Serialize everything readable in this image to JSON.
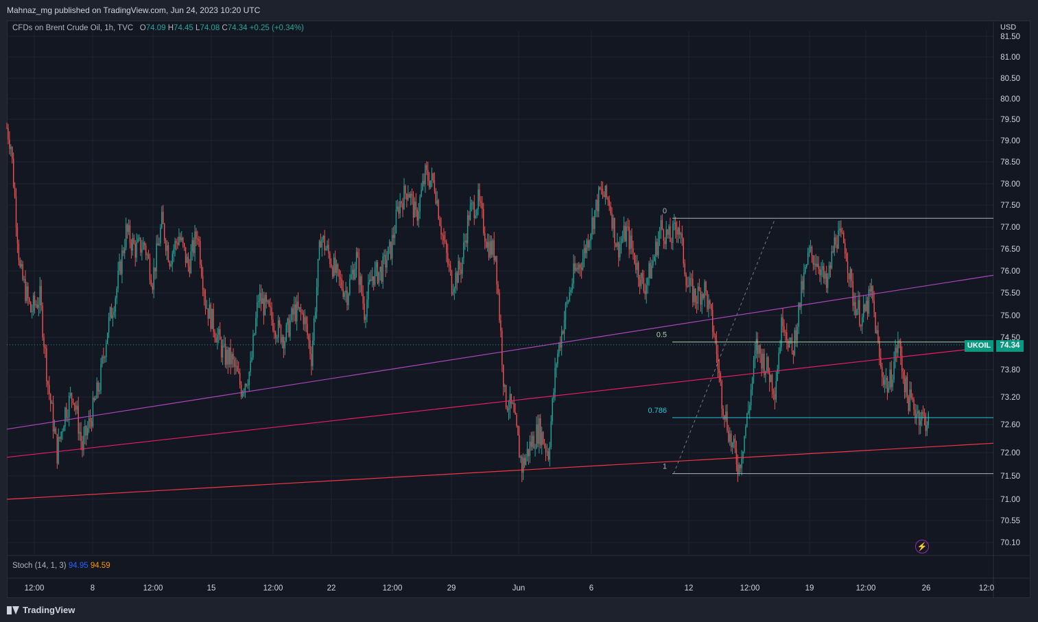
{
  "header": {
    "published": "Mahnaz_mg published on TradingView.com, Jun 24, 2023 10:20 UTC"
  },
  "legend": {
    "symbol": "CFDs on Brent Crude Oil, 1h, TVC",
    "o_label": "O",
    "o": "74.09",
    "h_label": "H",
    "h": "74.45",
    "l_label": "L",
    "l": "74.08",
    "c_label": "C",
    "c": "74.34",
    "change": "+0.25 (+0.34%)"
  },
  "stoch": {
    "label": "Stoch (14, 1, 3)",
    "k": "94.95",
    "d": "94.59"
  },
  "price_axis": {
    "currency": "USD",
    "ticks": [
      "81.50",
      "81.00",
      "80.50",
      "80.00",
      "79.50",
      "79.00",
      "78.50",
      "78.00",
      "77.50",
      "77.00",
      "76.50",
      "76.00",
      "75.50",
      "75.00",
      "74.50",
      "73.80",
      "73.20",
      "72.60",
      "72.00",
      "71.50",
      "71.00",
      "70.55",
      "70.10"
    ],
    "last_price": "74.34",
    "symbol_tag": "UKOIL"
  },
  "time_axis": {
    "ticks": [
      "12:00",
      "8",
      "12:00",
      "15",
      "12:00",
      "22",
      "12:00",
      "29",
      "Jun",
      "6",
      "12",
      "12:00",
      "19",
      "12:00",
      "26",
      "12:0"
    ]
  },
  "footer": {
    "brand": "TradingView"
  },
  "colors": {
    "up": "#26a69a",
    "down": "#ef5350",
    "purple_trend": "#ab47bc",
    "pink_trend": "#e91e63",
    "red_trend": "#f23645",
    "fib_green": "#a5d6a7",
    "fib_cyan": "#26c6da"
  },
  "chart_data": {
    "type": "candlestick",
    "title": "CFDs on Brent Crude Oil, 1h, TVC",
    "ylabel": "USD",
    "ylim": [
      70.0,
      81.6
    ],
    "y_scale": "nonlinear",
    "grid": true,
    "legend_position": "top-left",
    "x": [
      "12:00",
      "8",
      "12:00",
      "15",
      "12:00",
      "22",
      "12:00",
      "29",
      "Jun",
      "6",
      "12",
      "12:00",
      "19",
      "12:00",
      "26"
    ],
    "close_path": [
      [
        0,
        79.3
      ],
      [
        0.3,
        78.9
      ],
      [
        1.0,
        76.0
      ],
      [
        1.8,
        75.1
      ],
      [
        2.5,
        75.4
      ],
      [
        3.1,
        73.5
      ],
      [
        3.8,
        72.0
      ],
      [
        4.4,
        72.9
      ],
      [
        5.0,
        73.3
      ],
      [
        5.7,
        72.1
      ],
      [
        6.4,
        72.8
      ],
      [
        7.0,
        73.5
      ],
      [
        7.6,
        74.7
      ],
      [
        8.3,
        75.6
      ],
      [
        9.0,
        76.9
      ],
      [
        9.7,
        76.5
      ],
      [
        10.4,
        76.6
      ],
      [
        11.0,
        75.8
      ],
      [
        11.7,
        77.1
      ],
      [
        12.3,
        76.3
      ],
      [
        13.0,
        76.8
      ],
      [
        13.7,
        76.1
      ],
      [
        14.4,
        76.9
      ],
      [
        15.0,
        75.3
      ],
      [
        15.7,
        74.7
      ],
      [
        16.4,
        74.1
      ],
      [
        17.0,
        74.0
      ],
      [
        17.7,
        73.4
      ],
      [
        18.4,
        73.8
      ],
      [
        19.0,
        75.4
      ],
      [
        19.7,
        75.1
      ],
      [
        20.4,
        74.7
      ],
      [
        21.0,
        74.5
      ],
      [
        21.7,
        75.1
      ],
      [
        22.4,
        75.0
      ],
      [
        23.0,
        74.1
      ],
      [
        23.7,
        76.8
      ],
      [
        24.4,
        76.3
      ],
      [
        25.0,
        75.8
      ],
      [
        25.7,
        75.5
      ],
      [
        26.4,
        76.3
      ],
      [
        27.0,
        75.1
      ],
      [
        27.6,
        75.9
      ],
      [
        28.3,
        76.0
      ],
      [
        29.0,
        76.5
      ],
      [
        29.6,
        77.5
      ],
      [
        30.3,
        77.9
      ],
      [
        30.9,
        77.2
      ],
      [
        31.6,
        78.2
      ],
      [
        32.3,
        78.0
      ],
      [
        32.9,
        76.8
      ],
      [
        33.6,
        75.7
      ],
      [
        34.3,
        76.1
      ],
      [
        34.9,
        77.3
      ],
      [
        35.6,
        77.6
      ],
      [
        36.3,
        76.6
      ],
      [
        36.9,
        76.4
      ],
      [
        37.6,
        73.2
      ],
      [
        38.2,
        72.9
      ],
      [
        38.9,
        71.7
      ],
      [
        39.6,
        72.2
      ],
      [
        40.2,
        72.5
      ],
      [
        40.9,
        72.0
      ],
      [
        41.5,
        74.0
      ],
      [
        42.2,
        75.1
      ],
      [
        42.8,
        75.9
      ],
      [
        43.5,
        76.3
      ],
      [
        44.2,
        77.1
      ],
      [
        44.8,
        77.8
      ],
      [
        45.5,
        77.6
      ],
      [
        46.1,
        76.5
      ],
      [
        46.8,
        76.9
      ],
      [
        47.4,
        76.3
      ],
      [
        48.1,
        75.6
      ],
      [
        48.7,
        76.1
      ],
      [
        49.4,
        77.0
      ],
      [
        50.1,
        76.7
      ],
      [
        50.7,
        77.1
      ],
      [
        51.4,
        75.7
      ],
      [
        52.0,
        75.4
      ],
      [
        52.7,
        75.6
      ],
      [
        53.4,
        74.6
      ],
      [
        54.0,
        73.2
      ],
      [
        54.7,
        72.2
      ],
      [
        55.3,
        71.7
      ],
      [
        56.0,
        72.9
      ],
      [
        56.6,
        74.3
      ],
      [
        57.3,
        73.9
      ],
      [
        58.0,
        73.4
      ],
      [
        58.6,
        75.0
      ],
      [
        59.3,
        74.1
      ],
      [
        60.0,
        75.5
      ],
      [
        60.6,
        76.4
      ],
      [
        61.3,
        76.2
      ],
      [
        61.9,
        75.6
      ],
      [
        62.6,
        76.8
      ],
      [
        63.3,
        76.6
      ],
      [
        63.9,
        75.4
      ],
      [
        64.6,
        74.9
      ],
      [
        65.3,
        75.5
      ],
      [
        66.0,
        73.8
      ],
      [
        66.6,
        73.4
      ],
      [
        67.3,
        74.4
      ],
      [
        68.0,
        73.2
      ],
      [
        68.7,
        72.9
      ],
      [
        69.3,
        72.7
      ]
    ],
    "trendlines": [
      {
        "color": "purple",
        "from": [
          0,
          72.5
        ],
        "to": [
          70,
          75.9
        ]
      },
      {
        "color": "pink",
        "from": [
          0,
          71.9
        ],
        "to": [
          70,
          74.3
        ]
      },
      {
        "color": "red",
        "from": [
          0,
          71.0
        ],
        "to": [
          70,
          72.2
        ]
      }
    ],
    "fib_retracement": {
      "levels": [
        {
          "label": "0",
          "price": 77.2
        },
        {
          "label": "0.5",
          "price": 74.4
        },
        {
          "label": "0.786",
          "price": 72.75
        },
        {
          "label": "1",
          "price": 71.55
        }
      ]
    },
    "stochastic": {
      "k": 94.95,
      "d": 94.59,
      "k_period": 14,
      "smooth": 1,
      "d_period": 3
    }
  }
}
